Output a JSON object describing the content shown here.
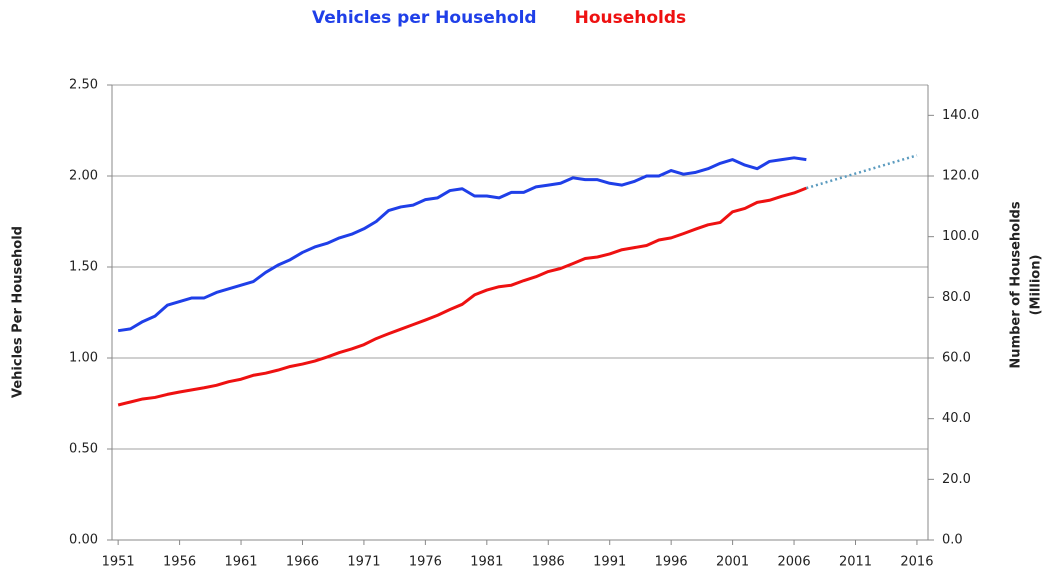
{
  "chart_data": {
    "type": "line",
    "ylabel": "Vehicles Per Household",
    "y2label": [
      "Number of Households",
      "(Million)"
    ],
    "legend": "top",
    "grid": true,
    "x": [
      1951,
      1952,
      1953,
      1954,
      1955,
      1956,
      1957,
      1958,
      1959,
      1960,
      1961,
      1962,
      1963,
      1964,
      1965,
      1966,
      1967,
      1968,
      1969,
      1970,
      1971,
      1972,
      1973,
      1974,
      1975,
      1976,
      1977,
      1978,
      1979,
      1980,
      1981,
      1982,
      1983,
      1984,
      1985,
      1986,
      1987,
      1988,
      1989,
      1990,
      1991,
      1992,
      1993,
      1994,
      1995,
      1996,
      1997,
      1998,
      1999,
      2000,
      2001,
      2002,
      2003,
      2004,
      2005,
      2006,
      2007,
      2008,
      2009,
      2010,
      2011,
      2012,
      2013,
      2014,
      2015,
      2016
    ],
    "xlim": [
      1950.5,
      2016.9
    ],
    "xticks": [
      1951,
      1956,
      1961,
      1966,
      1971,
      1976,
      1981,
      1986,
      1991,
      1996,
      2001,
      2006,
      2011,
      2016
    ],
    "ylim": [
      0,
      2.5
    ],
    "yticks": [
      {
        "value": 0,
        "label": "0.00"
      },
      {
        "value": 0.5,
        "label": "0.50"
      },
      {
        "value": 1,
        "label": "1.00"
      },
      {
        "value": 1.5,
        "label": "1.50"
      },
      {
        "value": 2,
        "label": "2.00"
      },
      {
        "value": 2.5,
        "label": "2.50"
      }
    ],
    "y2lim": [
      0,
      150
    ],
    "y2ticks": [
      {
        "value": 0,
        "label": "0.0"
      },
      {
        "value": 20,
        "label": "20.0"
      },
      {
        "value": 40,
        "label": "40.0"
      },
      {
        "value": 60,
        "label": "60.0"
      },
      {
        "value": 80,
        "label": "80.0"
      },
      {
        "value": 100,
        "label": "100.0"
      },
      {
        "value": 120,
        "label": "120.0"
      },
      {
        "value": 140,
        "label": "140.0"
      }
    ],
    "series": [
      {
        "name": "Vehicles per Household",
        "color": "#1f3fe8",
        "style": "solid",
        "values": [
          1.15,
          1.16,
          1.2,
          1.23,
          1.29,
          1.31,
          1.33,
          1.33,
          1.36,
          1.38,
          1.4,
          1.42,
          1.47,
          1.51,
          1.54,
          1.58,
          1.61,
          1.63,
          1.66,
          1.68,
          1.71,
          1.75,
          1.81,
          1.83,
          1.84,
          1.87,
          1.88,
          1.92,
          1.93,
          1.89,
          1.89,
          1.88,
          1.91,
          1.91,
          1.94,
          1.95,
          1.96,
          1.99,
          1.98,
          1.98,
          1.96,
          1.95,
          1.97,
          2.0,
          2.0,
          2.03,
          2.01,
          2.02,
          2.04,
          2.07,
          2.09,
          2.06,
          2.04,
          2.08,
          2.09,
          2.1,
          2.09,
          null,
          null,
          null,
          null,
          null,
          null,
          null,
          null,
          null
        ]
      },
      {
        "name": "Households",
        "color": "#ee1111",
        "style": "solid",
        "axis": "y2",
        "values": [
          44.5,
          45.5,
          46.5,
          47,
          48,
          48.8,
          49.5,
          50.2,
          51,
          52.2,
          53,
          54.3,
          55,
          56,
          57.2,
          58,
          59,
          60.3,
          61.8,
          63,
          64.4,
          66.4,
          68,
          69.5,
          71,
          72.5,
          74.1,
          76,
          77.7,
          80.8,
          82.4,
          83.5,
          84,
          85.5,
          86.8,
          88.5,
          89.5,
          91.1,
          92.8,
          93.3,
          94.3,
          95.7,
          96.4,
          97.1,
          98.9,
          99.6,
          101,
          102.5,
          103.9,
          104.7,
          108.2,
          109.3,
          111.3,
          112,
          113.3,
          114.4,
          116,
          null,
          null,
          null,
          null,
          null,
          null,
          null,
          null,
          null
        ]
      },
      {
        "color": "#5b9bbf",
        "style": "dotted",
        "axis": "y2",
        "values": [
          null,
          null,
          null,
          null,
          null,
          null,
          null,
          null,
          null,
          null,
          null,
          null,
          null,
          null,
          null,
          null,
          null,
          null,
          null,
          null,
          null,
          null,
          null,
          null,
          null,
          null,
          null,
          null,
          null,
          null,
          null,
          null,
          null,
          null,
          null,
          null,
          null,
          null,
          null,
          null,
          null,
          null,
          null,
          null,
          null,
          null,
          null,
          null,
          null,
          null,
          null,
          null,
          null,
          null,
          null,
          null,
          116,
          117.2,
          118.4,
          119.6,
          120.8,
          122,
          123.2,
          124.4,
          125.6,
          126.8
        ]
      }
    ]
  }
}
